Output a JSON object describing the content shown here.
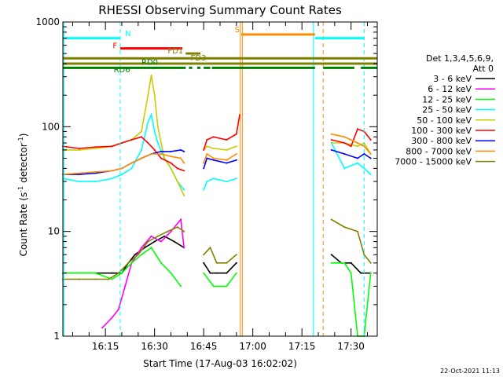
{
  "chart_data": {
    "type": "line",
    "title": "RHESSI Observing Summary Count Rates",
    "xlabel": "Start Time (17-Aug-03 16:02:02)",
    "ylabel_parts": [
      "Count Rate (s",
      "-1",
      " detector",
      "-1",
      ")"
    ],
    "yscale": "log",
    "ylim": [
      1,
      1000
    ],
    "y_ticks": [
      {
        "value": 1,
        "label": "1"
      },
      {
        "value": 10,
        "label": "10"
      },
      {
        "value": 100,
        "label": "100"
      },
      {
        "value": 1000,
        "label": "1000"
      }
    ],
    "xlim_minutes": [
      0,
      96
    ],
    "x_ticks": [
      {
        "minutes": 13,
        "label": "16:15"
      },
      {
        "minutes": 28,
        "label": "16:30"
      },
      {
        "minutes": 43,
        "label": "16:45"
      },
      {
        "minutes": 58,
        "label": "17:00"
      },
      {
        "minutes": 73,
        "label": "17:15"
      },
      {
        "minutes": 88,
        "label": "17:30"
      }
    ],
    "legend": {
      "header": [
        "Det 1,3,4,5,6,9,",
        "Att 0"
      ],
      "placement": "right",
      "entries": [
        {
          "label": "3 - 6 keV",
          "color": "#000000"
        },
        {
          "label": "6 - 12 keV",
          "color": "#ff00ff"
        },
        {
          "label": "12 - 25 keV",
          "color": "#00ff00"
        },
        {
          "label": "25 - 50 keV",
          "color": "#00ffff"
        },
        {
          "label": "50 - 100 keV",
          "color": "#cccc00"
        },
        {
          "label": "100 - 300 keV",
          "color": "#ff0000"
        },
        {
          "label": "300 - 800 keV",
          "color": "#0000ff"
        },
        {
          "label": "800 - 7000 keV",
          "color": "#ff8c00"
        },
        {
          "label": "7000 - 15000 keV",
          "color": "#808000"
        }
      ]
    },
    "flag_bars": [
      {
        "label": "N",
        "color": "#00ffff",
        "y": 700,
        "segments": [
          [
            0,
            17.5
          ],
          [
            77,
            92
          ]
        ]
      },
      {
        "label": "F",
        "color": "#ff0000",
        "y": 560,
        "segments": [
          [
            17.5,
            36.5
          ]
        ]
      },
      {
        "label": "S",
        "color": "#ff8c00",
        "y": 760,
        "segments": [
          [
            54.5,
            77
          ]
        ]
      },
      {
        "label": "FD1",
        "color": "#808000",
        "y": 500,
        "segments": [
          [
            37.5,
            42
          ]
        ]
      },
      {
        "label": "FD3",
        "color": "#808000",
        "y": 450,
        "segments": [
          [
            0,
            96
          ]
        ]
      },
      {
        "label": "RD0",
        "color": "#808000",
        "y": 400,
        "segments": [
          [
            0,
            96
          ]
        ]
      },
      {
        "label": "RD6",
        "color": "#008000",
        "y": 365,
        "segments": [
          [
            0,
            37.5
          ],
          [
            38.5,
            39.5
          ],
          [
            41,
            42
          ],
          [
            43,
            45
          ],
          [
            45.5,
            77
          ],
          [
            79.5,
            89
          ],
          [
            91,
            96
          ]
        ]
      }
    ],
    "vertical_markers": [
      {
        "minutes": 17.5,
        "color": "#00ffff",
        "style": "dashed"
      },
      {
        "minutes": 0.3,
        "color": "#00ffff",
        "style": "solid"
      },
      {
        "minutes": 54.2,
        "color": "#ff8c00",
        "style": "solid"
      },
      {
        "minutes": 54.8,
        "color": "#ff8c00",
        "style": "solid"
      },
      {
        "minutes": 76.5,
        "color": "#00ffff",
        "style": "solid"
      },
      {
        "minutes": 79.5,
        "color": "#ff8c00",
        "style": "dashed"
      },
      {
        "minutes": 92,
        "color": "#00ffff",
        "style": "dashed"
      }
    ],
    "data_gaps_minutes": [
      [
        37.5,
        42.5
      ],
      [
        54.5,
        79.5
      ]
    ],
    "series": [
      {
        "name": "3 - 6 keV",
        "color": "#000000",
        "x": [
          0,
          10,
          15,
          18,
          20,
          22,
          25,
          28,
          31,
          34,
          37,
          43,
          45,
          47,
          50,
          53,
          82,
          85,
          88,
          91,
          94
        ],
        "y": [
          4,
          4,
          4,
          4,
          5,
          6,
          7,
          8,
          9,
          8,
          7,
          5,
          4,
          4,
          4,
          5,
          6,
          5,
          5,
          4,
          4
        ]
      },
      {
        "name": "6 - 12 keV",
        "color": "#ff00ff",
        "x": [
          12,
          15,
          17,
          19,
          21,
          24,
          27,
          30,
          33,
          36,
          37
        ],
        "y": [
          1.2,
          1.5,
          1.8,
          3,
          5,
          7,
          9,
          8,
          10,
          13,
          7
        ]
      },
      {
        "name": "12 - 25 keV",
        "color": "#00ff00",
        "x": [
          0,
          5,
          10,
          15,
          18,
          21,
          24,
          27,
          30,
          33,
          36,
          43,
          46,
          50,
          53,
          82,
          86,
          88,
          90,
          92,
          94
        ],
        "y": [
          4,
          4,
          4,
          3.5,
          4,
          5,
          6,
          7,
          5,
          4,
          3,
          4,
          3,
          3,
          4,
          5,
          5,
          4,
          1,
          1,
          4
        ]
      },
      {
        "name": "25 - 50 keV",
        "color": "#00ffff",
        "x": [
          0,
          5,
          10,
          15,
          18,
          21,
          24,
          26,
          27,
          28,
          29,
          31,
          33,
          35,
          37,
          43,
          44,
          46,
          50,
          53,
          82,
          86,
          90,
          92,
          94
        ],
        "y": [
          32,
          30,
          30,
          32,
          35,
          40,
          60,
          110,
          130,
          90,
          70,
          50,
          40,
          30,
          25,
          25,
          30,
          32,
          30,
          32,
          70,
          40,
          45,
          40,
          35
        ]
      },
      {
        "name": "50 - 100 keV",
        "color": "#cccc00",
        "x": [
          0,
          5,
          10,
          15,
          18,
          21,
          24,
          26,
          27,
          28,
          29,
          31,
          33,
          35,
          37,
          43,
          44,
          46,
          50,
          53,
          82,
          86,
          90,
          92,
          94
        ],
        "y": [
          60,
          60,
          62,
          65,
          70,
          75,
          90,
          200,
          310,
          200,
          100,
          50,
          40,
          30,
          22,
          60,
          65,
          62,
          60,
          65,
          70,
          70,
          65,
          70,
          55
        ]
      },
      {
        "name": "100 - 300 keV",
        "color": "#ff0000",
        "x": [
          0,
          5,
          10,
          15,
          18,
          21,
          24,
          26,
          28,
          30,
          33,
          35,
          37,
          43,
          44,
          46,
          50,
          53,
          54,
          82,
          86,
          88,
          90,
          92,
          94
        ],
        "y": [
          65,
          62,
          64,
          65,
          70,
          75,
          80,
          70,
          60,
          50,
          45,
          40,
          38,
          60,
          75,
          80,
          75,
          85,
          130,
          75,
          70,
          65,
          95,
          90,
          75
        ]
      },
      {
        "name": "300 - 800 keV",
        "color": "#0000ff",
        "x": [
          0,
          5,
          10,
          15,
          18,
          21,
          24,
          27,
          30,
          33,
          36,
          37,
          43,
          44,
          46,
          50,
          53,
          82,
          86,
          90,
          92,
          94
        ],
        "y": [
          35,
          35,
          36,
          38,
          40,
          45,
          50,
          55,
          58,
          58,
          60,
          58,
          40,
          50,
          48,
          45,
          48,
          60,
          55,
          50,
          55,
          50
        ]
      },
      {
        "name": "800 - 7000 keV",
        "color": "#ff8c00",
        "x": [
          0,
          5,
          10,
          15,
          18,
          21,
          24,
          27,
          30,
          33,
          36,
          37,
          43,
          44,
          46,
          50,
          53,
          82,
          86,
          90,
          92,
          94
        ],
        "y": [
          35,
          36,
          37,
          38,
          40,
          45,
          50,
          55,
          55,
          52,
          50,
          45,
          45,
          55,
          50,
          48,
          55,
          85,
          80,
          70,
          65,
          55
        ]
      },
      {
        "name": "7000 - 15000 keV",
        "color": "#808000",
        "x": [
          0,
          5,
          10,
          14,
          17,
          20,
          23,
          26,
          29,
          32,
          35,
          37,
          43,
          45,
          47,
          50,
          53,
          82,
          86,
          90,
          92,
          94
        ],
        "y": [
          3.5,
          3.5,
          3.5,
          3.5,
          4,
          5,
          6,
          8,
          9,
          10,
          11,
          10,
          6,
          7,
          5,
          5,
          6,
          13,
          11,
          10,
          6,
          5
        ]
      }
    ],
    "flag_labels": [
      {
        "text": "N",
        "color": "#00ffff",
        "minutes": 19,
        "y": 730
      },
      {
        "text": "F",
        "color": "#ff0000",
        "minutes": 15.2,
        "y": 560
      },
      {
        "text": "S",
        "color": "#ff8c00",
        "minutes": 52.5,
        "y": 800
      },
      {
        "text": "FD1",
        "color": "#808000",
        "minutes": 32,
        "y": 500
      },
      {
        "text": "FD3",
        "color": "#808000",
        "minutes": 39,
        "y": 430
      },
      {
        "text": "RD0",
        "color": "#008000",
        "minutes": 24,
        "y": 390
      },
      {
        "text": "RD6",
        "color": "#008000",
        "minutes": 15.5,
        "y": 330
      }
    ]
  },
  "footer": {
    "date": "22-Oct-2021 11:13"
  }
}
